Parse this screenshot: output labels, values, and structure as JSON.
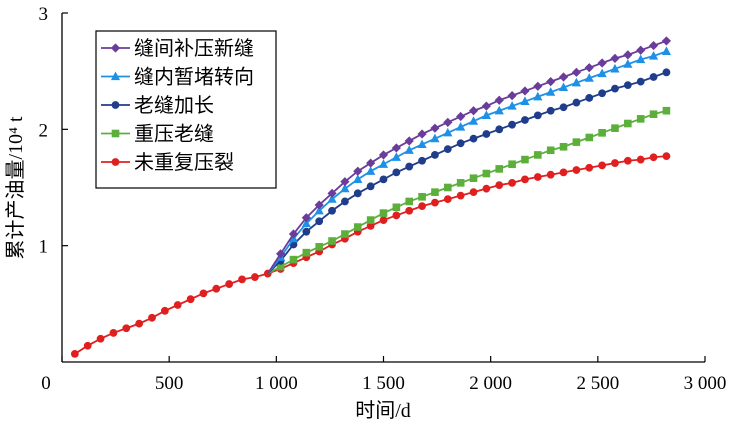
{
  "chart_data": {
    "type": "line",
    "xlabel": "时间/d",
    "ylabel": "累计产油量/10⁴ t",
    "xlim": [
      0,
      3000
    ],
    "ylim": [
      0,
      3
    ],
    "x_ticks": [
      {
        "value": 0,
        "label": "0"
      },
      {
        "value": 500,
        "label": "500"
      },
      {
        "value": 1000,
        "label": "1 000"
      },
      {
        "value": 1500,
        "label": "1 500"
      },
      {
        "value": 2000,
        "label": "2 000"
      },
      {
        "value": 2500,
        "label": "2 500"
      },
      {
        "value": 3000,
        "label": "3 000"
      }
    ],
    "y_ticks": [
      {
        "value": 1,
        "label": "1"
      },
      {
        "value": 2,
        "label": "2"
      },
      {
        "value": 3,
        "label": "3"
      }
    ],
    "grid": false,
    "legend_position": "top-left",
    "base_series": {
      "x": [
        60,
        120,
        180,
        240,
        300,
        360,
        420,
        480,
        540,
        600,
        660,
        720,
        780,
        840,
        900,
        960
      ],
      "y": [
        0.07,
        0.14,
        0.2,
        0.25,
        0.29,
        0.33,
        0.38,
        0.44,
        0.49,
        0.54,
        0.59,
        0.63,
        0.67,
        0.71,
        0.73,
        0.76
      ]
    },
    "series": [
      {
        "name": "缝间补压新缝",
        "color": "#6a3d9a",
        "marker": "diamond",
        "x": [
          960,
          1020,
          1080,
          1140,
          1200,
          1260,
          1320,
          1380,
          1440,
          1500,
          1560,
          1620,
          1680,
          1740,
          1800,
          1860,
          1920,
          1980,
          2040,
          2100,
          2160,
          2220,
          2280,
          2340,
          2400,
          2460,
          2520,
          2580,
          2640,
          2700,
          2760,
          2820
        ],
        "y": [
          0.76,
          0.93,
          1.1,
          1.24,
          1.35,
          1.45,
          1.55,
          1.64,
          1.71,
          1.78,
          1.84,
          1.9,
          1.96,
          2.01,
          2.06,
          2.11,
          2.16,
          2.2,
          2.25,
          2.29,
          2.33,
          2.37,
          2.41,
          2.45,
          2.49,
          2.53,
          2.57,
          2.61,
          2.64,
          2.68,
          2.72,
          2.76
        ]
      },
      {
        "name": "缝内暂堵转向",
        "color": "#1e90e6",
        "marker": "triangle",
        "x": [
          960,
          1020,
          1080,
          1140,
          1200,
          1260,
          1320,
          1380,
          1440,
          1500,
          1560,
          1620,
          1680,
          1740,
          1800,
          1860,
          1920,
          1980,
          2040,
          2100,
          2160,
          2220,
          2280,
          2340,
          2400,
          2460,
          2520,
          2580,
          2640,
          2700,
          2760,
          2820
        ],
        "y": [
          0.76,
          0.9,
          1.06,
          1.19,
          1.3,
          1.4,
          1.49,
          1.57,
          1.64,
          1.7,
          1.76,
          1.82,
          1.87,
          1.92,
          1.97,
          2.02,
          2.07,
          2.12,
          2.16,
          2.2,
          2.24,
          2.28,
          2.32,
          2.36,
          2.4,
          2.44,
          2.48,
          2.52,
          2.56,
          2.6,
          2.63,
          2.67
        ]
      },
      {
        "name": "老缝加长",
        "color": "#203d8c",
        "marker": "circle",
        "x": [
          960,
          1020,
          1080,
          1140,
          1200,
          1260,
          1320,
          1380,
          1440,
          1500,
          1560,
          1620,
          1680,
          1740,
          1800,
          1860,
          1920,
          1980,
          2040,
          2100,
          2160,
          2220,
          2280,
          2340,
          2400,
          2460,
          2520,
          2580,
          2640,
          2700,
          2760,
          2820
        ],
        "y": [
          0.76,
          0.87,
          1.01,
          1.12,
          1.21,
          1.3,
          1.38,
          1.45,
          1.51,
          1.57,
          1.63,
          1.68,
          1.73,
          1.78,
          1.83,
          1.88,
          1.92,
          1.96,
          2.0,
          2.04,
          2.08,
          2.12,
          2.16,
          2.19,
          2.23,
          2.27,
          2.31,
          2.35,
          2.38,
          2.41,
          2.45,
          2.49
        ]
      },
      {
        "name": "重压老缝",
        "color": "#5daf3c",
        "marker": "square",
        "x": [
          960,
          1020,
          1080,
          1140,
          1200,
          1260,
          1320,
          1380,
          1440,
          1500,
          1560,
          1620,
          1680,
          1740,
          1800,
          1860,
          1920,
          1980,
          2040,
          2100,
          2160,
          2220,
          2280,
          2340,
          2400,
          2460,
          2520,
          2580,
          2640,
          2700,
          2760,
          2820
        ],
        "y": [
          0.76,
          0.82,
          0.88,
          0.94,
          0.99,
          1.04,
          1.1,
          1.16,
          1.22,
          1.28,
          1.33,
          1.38,
          1.42,
          1.46,
          1.5,
          1.54,
          1.58,
          1.62,
          1.66,
          1.7,
          1.74,
          1.78,
          1.82,
          1.85,
          1.89,
          1.93,
          1.97,
          2.01,
          2.05,
          2.09,
          2.13,
          2.16
        ]
      },
      {
        "name": "未重复压裂",
        "color": "#e02020",
        "marker": "circle",
        "x": [
          960,
          1020,
          1080,
          1140,
          1200,
          1260,
          1320,
          1380,
          1440,
          1500,
          1560,
          1620,
          1680,
          1740,
          1800,
          1860,
          1920,
          1980,
          2040,
          2100,
          2160,
          2220,
          2280,
          2340,
          2400,
          2460,
          2520,
          2580,
          2640,
          2700,
          2760,
          2820
        ],
        "y": [
          0.76,
          0.8,
          0.85,
          0.9,
          0.95,
          1.01,
          1.06,
          1.12,
          1.17,
          1.22,
          1.26,
          1.3,
          1.34,
          1.37,
          1.4,
          1.43,
          1.46,
          1.49,
          1.52,
          1.54,
          1.57,
          1.59,
          1.61,
          1.63,
          1.65,
          1.67,
          1.69,
          1.71,
          1.73,
          1.74,
          1.76,
          1.77
        ]
      }
    ]
  }
}
